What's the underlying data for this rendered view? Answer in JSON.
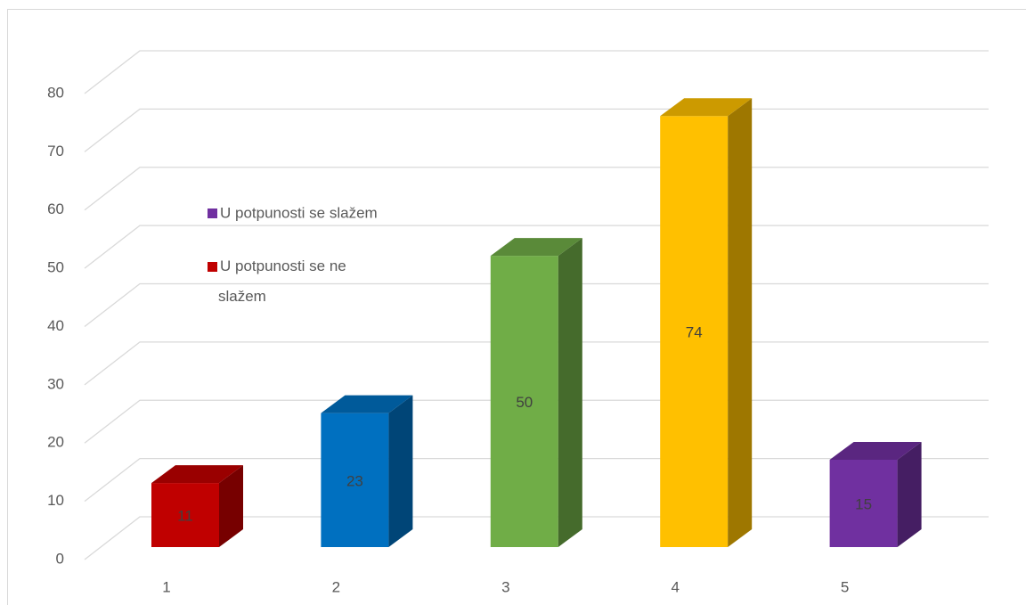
{
  "chart_data": {
    "type": "bar3d",
    "categories": [
      "1",
      "2",
      "3",
      "4",
      "5"
    ],
    "values": [
      11,
      23,
      50,
      74,
      15
    ],
    "colors": [
      "#c00000",
      "#0070c0",
      "#70ad47",
      "#ffc000",
      "#7030a0"
    ],
    "ylim": [
      0,
      80
    ],
    "yticks": [
      0,
      10,
      20,
      30,
      40,
      50,
      60,
      70,
      80
    ],
    "grid": true,
    "legend": [
      {
        "name": "U potpunosti se slažem",
        "color": "#7030a0"
      },
      {
        "name": "U potpunosti se ne slažem",
        "color": "#c00000"
      }
    ]
  }
}
